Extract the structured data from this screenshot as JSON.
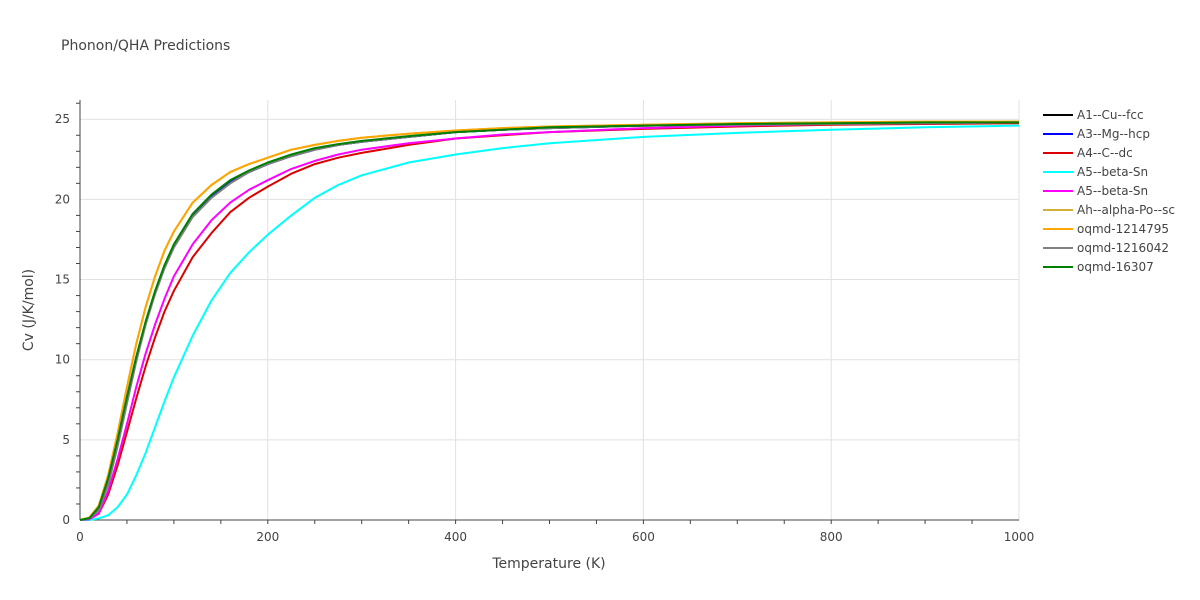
{
  "chart_data": {
    "type": "line",
    "title": "Phonon/QHA Predictions",
    "xlabel": "Temperature (K)",
    "ylabel": "Cv (J/K/mol)",
    "xlim": [
      0,
      1000
    ],
    "ylim": [
      0,
      26.2
    ],
    "xticks": [
      0,
      200,
      400,
      600,
      800,
      1000
    ],
    "yticks": [
      0,
      5,
      10,
      15,
      20,
      25
    ],
    "grid": true,
    "legend_position": "top-right",
    "x": [
      0,
      10,
      20,
      30,
      40,
      50,
      60,
      70,
      80,
      90,
      100,
      120,
      140,
      160,
      180,
      200,
      225,
      250,
      275,
      300,
      350,
      400,
      450,
      500,
      600,
      700,
      800,
      900,
      1000
    ],
    "series": [
      {
        "name": "A1--Cu--fcc",
        "color": "#000000",
        "values": [
          0,
          0.1,
          0.6,
          2.3,
          4.7,
          7.4,
          10.0,
          12.3,
          14.2,
          15.8,
          17.1,
          19.0,
          20.2,
          21.1,
          21.7,
          22.2,
          22.7,
          23.1,
          23.4,
          23.6,
          23.9,
          24.2,
          24.35,
          24.45,
          24.6,
          24.65,
          24.7,
          24.75,
          24.8
        ]
      },
      {
        "name": "A3--Mg--hcp",
        "color": "#0000ff",
        "values": [
          0,
          0.1,
          0.6,
          2.3,
          4.7,
          7.4,
          10.0,
          12.3,
          14.2,
          15.8,
          17.1,
          19.0,
          20.2,
          21.1,
          21.7,
          22.2,
          22.7,
          23.1,
          23.4,
          23.6,
          23.9,
          24.2,
          24.35,
          24.45,
          24.6,
          24.65,
          24.7,
          24.75,
          24.8
        ]
      },
      {
        "name": "A4--C--dc",
        "color": "#dd0000",
        "values": [
          0,
          0.05,
          0.4,
          1.6,
          3.4,
          5.5,
          7.6,
          9.6,
          11.4,
          13.0,
          14.3,
          16.4,
          17.9,
          19.2,
          20.1,
          20.8,
          21.6,
          22.2,
          22.6,
          22.9,
          23.4,
          23.8,
          24.0,
          24.2,
          24.4,
          24.55,
          24.65,
          24.7,
          24.75
        ]
      },
      {
        "name": "A5--beta-Sn",
        "color": "#00ffff",
        "values": [
          0,
          0.0,
          0.1,
          0.3,
          0.8,
          1.6,
          2.8,
          4.2,
          5.8,
          7.4,
          8.9,
          11.5,
          13.7,
          15.4,
          16.7,
          17.8,
          19.0,
          20.1,
          20.9,
          21.5,
          22.3,
          22.8,
          23.2,
          23.5,
          23.9,
          24.15,
          24.35,
          24.5,
          24.6
        ]
      },
      {
        "name": "A5--beta-Sn",
        "color": "#ff00ff",
        "values": [
          0,
          0.05,
          0.4,
          1.8,
          3.8,
          6.0,
          8.3,
          10.4,
          12.2,
          13.8,
          15.2,
          17.2,
          18.7,
          19.8,
          20.6,
          21.2,
          21.9,
          22.4,
          22.8,
          23.1,
          23.5,
          23.8,
          24.05,
          24.2,
          24.45,
          24.6,
          24.7,
          24.75,
          24.8
        ]
      },
      {
        "name": "Ah--alpha-Po--sc",
        "color": "#d4af37",
        "values": [
          0,
          0.15,
          0.9,
          2.8,
          5.4,
          8.3,
          11.0,
          13.3,
          15.2,
          16.8,
          18.0,
          19.8,
          20.9,
          21.7,
          22.2,
          22.6,
          23.1,
          23.4,
          23.65,
          23.85,
          24.1,
          24.3,
          24.45,
          24.55,
          24.65,
          24.75,
          24.8,
          24.85,
          24.85
        ]
      },
      {
        "name": "oqmd-1214795",
        "color": "#ffa500",
        "values": [
          0,
          0.15,
          0.9,
          2.8,
          5.4,
          8.3,
          11.0,
          13.3,
          15.2,
          16.8,
          18.0,
          19.8,
          20.9,
          21.7,
          22.2,
          22.6,
          23.1,
          23.4,
          23.65,
          23.85,
          24.1,
          24.3,
          24.45,
          24.55,
          24.65,
          24.75,
          24.8,
          24.85,
          24.85
        ]
      },
      {
        "name": "oqmd-1216042",
        "color": "#808080",
        "values": [
          0,
          0.1,
          0.6,
          2.2,
          4.6,
          7.3,
          9.9,
          12.2,
          14.1,
          15.7,
          17.0,
          18.9,
          20.1,
          21.0,
          21.7,
          22.2,
          22.7,
          23.1,
          23.4,
          23.6,
          23.9,
          24.2,
          24.35,
          24.45,
          24.6,
          24.65,
          24.7,
          24.75,
          24.8
        ]
      },
      {
        "name": "oqmd-16307",
        "color": "#008000",
        "values": [
          0,
          0.12,
          0.8,
          2.6,
          5.0,
          7.7,
          10.2,
          12.4,
          14.3,
          15.9,
          17.2,
          19.1,
          20.3,
          21.2,
          21.8,
          22.3,
          22.8,
          23.2,
          23.45,
          23.65,
          23.95,
          24.2,
          24.35,
          24.5,
          24.6,
          24.7,
          24.75,
          24.8,
          24.8
        ]
      }
    ]
  }
}
